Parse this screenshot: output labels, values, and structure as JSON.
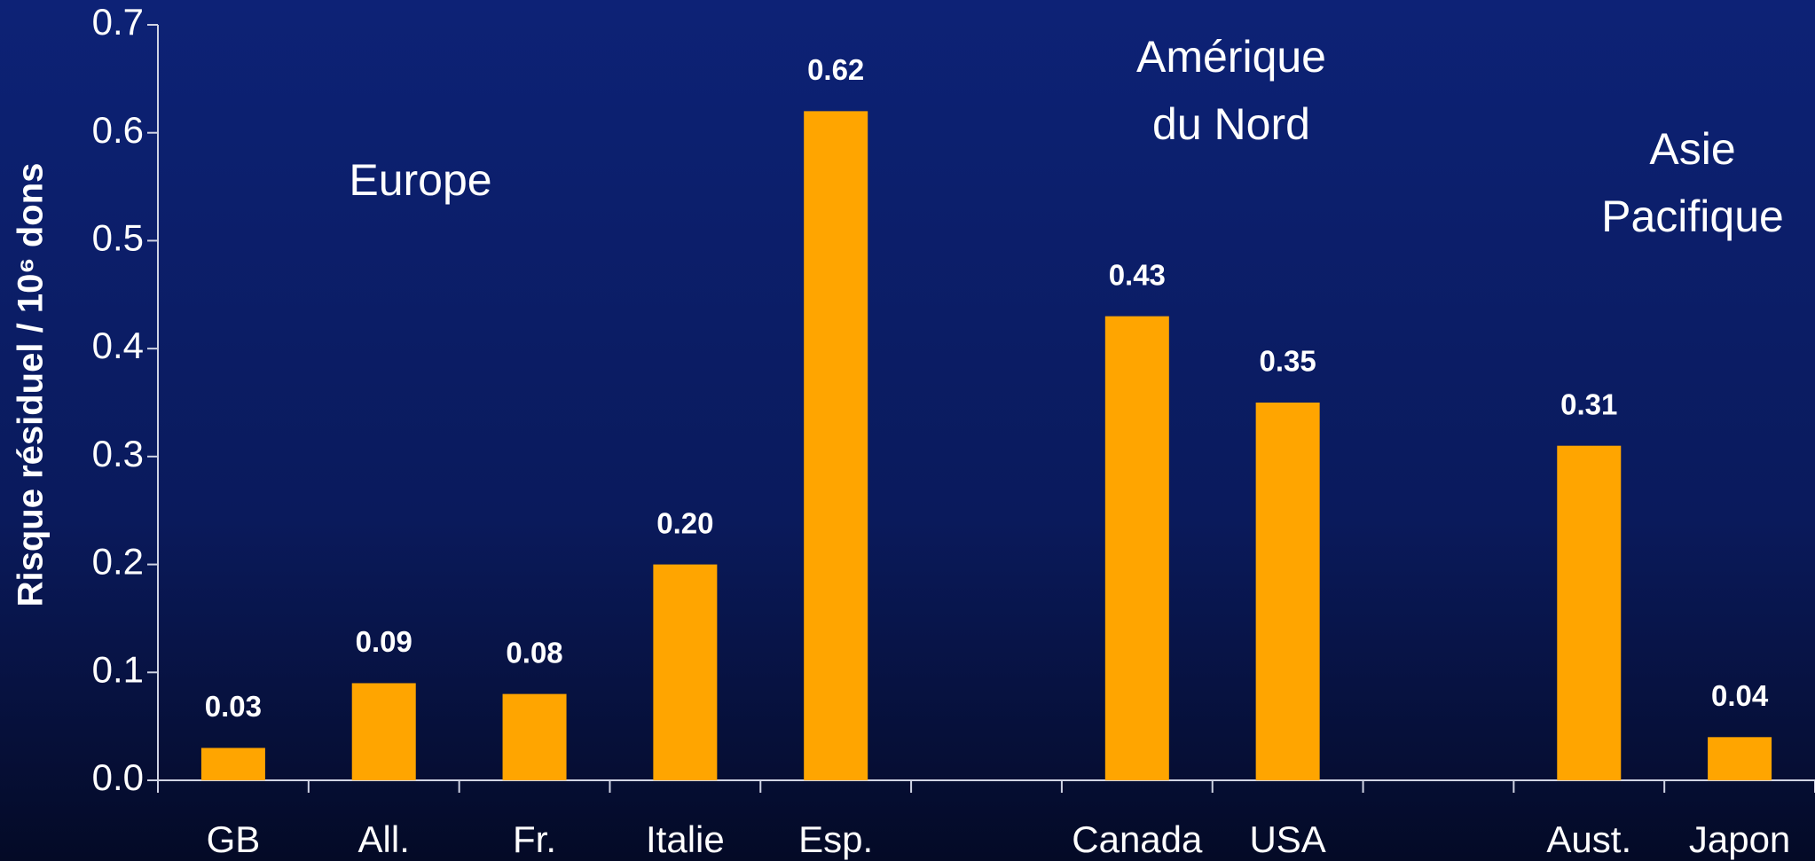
{
  "chart_data": {
    "type": "bar",
    "y_label": "Risque résiduel  / 10⁶ dons",
    "categories": [
      "GB",
      "All.",
      "Fr.",
      "Italie",
      "Esp.",
      null,
      "Canada",
      "USA",
      null,
      "Aust.",
      "Japon"
    ],
    "values": [
      0.03,
      0.09,
      0.08,
      0.2,
      0.62,
      null,
      0.43,
      0.35,
      null,
      0.31,
      0.04
    ],
    "value_labels": [
      "0.03",
      "0.09",
      "0.08",
      "0.20",
      "0.62",
      null,
      "0.43",
      "0.35",
      null,
      "0.31",
      "0.04"
    ],
    "color": "#ffa500",
    "ylim": [
      0,
      0.7
    ],
    "yticks": [
      {
        "value": 0,
        "label": "0.0"
      },
      0.1,
      0.2,
      0.3,
      0.4,
      0.5,
      0.6,
      0.7
    ],
    "annotations": [
      [
        "Europe"
      ],
      [
        "Amérique",
        "du Nord"
      ],
      [
        "Asie",
        "Pacifique"
      ]
    ]
  }
}
